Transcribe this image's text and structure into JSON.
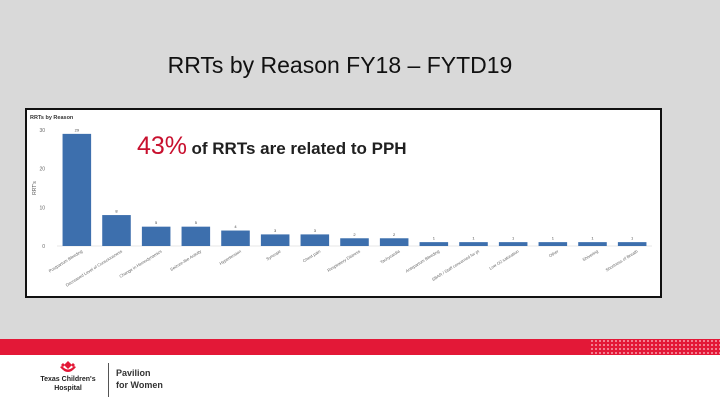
{
  "slide": {
    "title": "RRTs by Reason FY18 – FYTD19",
    "callout_percent": "43%",
    "callout_text": "of RRTs are related to PPH"
  },
  "chart_data": {
    "type": "bar",
    "title": "RRTs by Reason",
    "ylabel": "RRT's",
    "xlabel": "",
    "ylim": [
      0,
      30
    ],
    "yticks": [
      0,
      10,
      20,
      30
    ],
    "categories": [
      "Postpartum Bleeding",
      "Decreased Level of Consciousness",
      "Change in Hemodynamics",
      "Seizure-like Activity",
      "Hypertension",
      "Syncope",
      "Chest pain",
      "Respiratory Distress",
      "Tachycardia",
      "Antepartum Bleeding",
      "SBAR / Staff concerned for pt",
      "Low O2 saturation",
      "Other",
      "Shivering",
      "Shortness of Breath"
    ],
    "values": [
      29,
      8,
      5,
      5,
      4,
      3,
      3,
      2,
      2,
      1,
      1,
      1,
      1,
      1,
      1
    ],
    "data_labels": [
      "29",
      "8",
      "5",
      "5",
      "4",
      "3",
      "3",
      "2",
      "2",
      "1",
      "1",
      "1",
      "1",
      "1",
      "1"
    ],
    "bar_color": "#3d6fad",
    "grid": false,
    "legend": "none"
  },
  "footer": {
    "logo_left_line1": "Texas Children's",
    "logo_left_line2": "Hospital",
    "logo_right_line1": "Pavilion",
    "logo_right_line2": "for Women",
    "brand_color": "#e31837"
  }
}
